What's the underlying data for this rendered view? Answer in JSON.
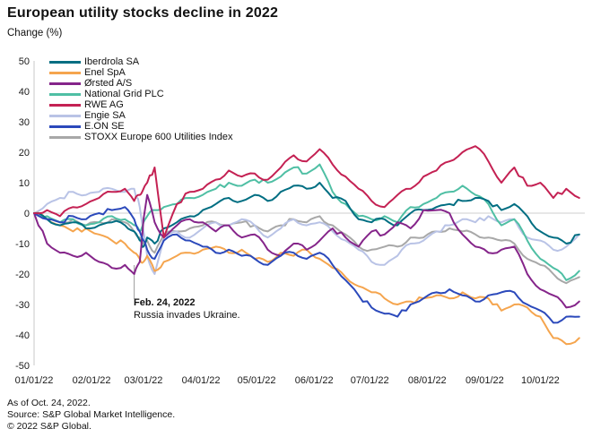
{
  "header": {
    "title": "European utility stocks decline in 2022",
    "subtitle": "Change (%)"
  },
  "annotation": {
    "line1": "Feb. 24, 2022",
    "line2": "Russia invades Ukraine."
  },
  "footer": {
    "line1": "As of Oct. 24, 2022.",
    "line2": "Source: S&P Global Market Intelligence.",
    "line3": "© 2022 S&P Global."
  },
  "chart_data": {
    "type": "line",
    "title": "European utility stocks decline in 2022",
    "xlabel": "",
    "ylabel": "Change (%)",
    "ylim": [
      -50,
      50
    ],
    "grid": "zero-line-only",
    "legend_position": "top-left",
    "y_ticks": [
      50,
      40,
      30,
      20,
      10,
      0,
      -10,
      -20,
      -30,
      -40,
      -50
    ],
    "x_tick_labels": [
      "01/01/22",
      "02/01/22",
      "03/01/22",
      "04/01/22",
      "05/01/22",
      "06/01/22",
      "07/01/22",
      "08/01/22",
      "09/01/22",
      "10/01/22"
    ],
    "x_tick_days": [
      0,
      31,
      59,
      90,
      120,
      151,
      181,
      212,
      243,
      273
    ],
    "x_range_days": [
      0,
      297
    ],
    "annotation_event": {
      "day": 54,
      "label": "Feb. 24, 2022",
      "text": "Russia invades Ukraine."
    },
    "x_days": [
      0,
      7,
      14,
      21,
      28,
      35,
      42,
      49,
      54,
      57,
      59,
      61,
      65,
      70,
      77,
      84,
      91,
      98,
      105,
      112,
      119,
      126,
      133,
      140,
      147,
      154,
      161,
      168,
      175,
      182,
      189,
      196,
      203,
      210,
      217,
      224,
      231,
      238,
      245,
      252,
      259,
      266,
      273,
      280,
      287,
      294
    ],
    "series": [
      {
        "name": "Iberdrola SA",
        "color": "#006e82",
        "values": [
          0,
          -2,
          -4,
          -3,
          -5,
          -4,
          -3,
          -4,
          -6,
          -9,
          -11,
          -8,
          -10,
          -5,
          -3,
          -1,
          1,
          3,
          5,
          4,
          6,
          4,
          7,
          9,
          8,
          10,
          5,
          4,
          -2,
          -3,
          -2,
          -4,
          0,
          1,
          2,
          3,
          4,
          5,
          4,
          1,
          3,
          -1,
          -6,
          -8,
          -10,
          -7
        ]
      },
      {
        "name": "Enel SpA",
        "color": "#f5a54e",
        "values": [
          0,
          -2,
          -4,
          -6,
          -5,
          -7,
          -9,
          -10,
          -13,
          -15,
          -16,
          -14,
          -19,
          -16,
          -14,
          -13,
          -12,
          -11,
          -13,
          -12,
          -15,
          -16,
          -13,
          -14,
          -12,
          -15,
          -18,
          -21,
          -24,
          -26,
          -28,
          -30,
          -29,
          -28,
          -27,
          -28,
          -26,
          -28,
          -28,
          -32,
          -30,
          -31,
          -34,
          -41,
          -43,
          -41
        ]
      },
      {
        "name": "Ørsted A/S",
        "color": "#85258a",
        "values": [
          0,
          -10,
          -13,
          -14,
          -13,
          -16,
          -18,
          -17,
          -20,
          -16,
          -2,
          6,
          -3,
          -8,
          -4,
          -2,
          -3,
          -6,
          -4,
          -8,
          -7,
          -12,
          -14,
          -10,
          -12,
          -9,
          -5,
          -8,
          -11,
          -6,
          -7,
          -3,
          -5,
          1,
          1,
          0,
          -7,
          -11,
          -13,
          -12,
          -11,
          -20,
          -25,
          -27,
          -31,
          -29
        ]
      },
      {
        "name": "National Grid PLC",
        "color": "#4fbfa4",
        "values": [
          0,
          -1,
          -3,
          -2,
          -4,
          -3,
          -1,
          -2,
          -4,
          -6,
          -3,
          -1,
          1,
          2,
          3,
          5,
          6,
          8,
          10,
          9,
          11,
          10,
          12,
          15,
          13,
          16,
          7,
          3,
          -1,
          -2,
          -1,
          -3,
          2,
          3,
          5,
          7,
          9,
          6,
          3,
          -4,
          -2,
          -9,
          -15,
          -18,
          -22,
          -19
        ]
      },
      {
        "name": "RWE AG",
        "color": "#c42153",
        "values": [
          0,
          1,
          -1,
          2,
          3,
          5,
          7,
          8,
          4,
          6,
          8,
          10,
          15,
          -8,
          3,
          7,
          8,
          11,
          14,
          12,
          13,
          11,
          15,
          19,
          17,
          21,
          16,
          12,
          8,
          4,
          2,
          6,
          8,
          12,
          14,
          17,
          20,
          22,
          17,
          10,
          15,
          9,
          10,
          5,
          8,
          5
        ]
      },
      {
        "name": "Engie SA",
        "color": "#b9c3e6",
        "values": [
          0,
          3,
          5,
          7,
          6,
          7,
          8,
          7,
          8,
          2,
          -6,
          -14,
          -20,
          -8,
          -6,
          -8,
          -5,
          -3,
          -4,
          -2,
          -4,
          -8,
          -5,
          -2,
          -4,
          -3,
          -6,
          -9,
          -12,
          -16,
          -17,
          -14,
          -10,
          -9,
          -6,
          -4,
          -2,
          -3,
          -1,
          -3,
          -2,
          -8,
          -9,
          -12,
          -11,
          -7
        ]
      },
      {
        "name": "E.ON SE",
        "color": "#2b49bb",
        "values": [
          0,
          -2,
          -3,
          -1,
          -2,
          0,
          1,
          2,
          -2,
          -6,
          -9,
          -12,
          -15,
          -9,
          -7,
          -9,
          -11,
          -13,
          -12,
          -14,
          -15,
          -17,
          -14,
          -13,
          -15,
          -13,
          -17,
          -22,
          -27,
          -31,
          -33,
          -34,
          -30,
          -28,
          -26,
          -25,
          -27,
          -29,
          -27,
          -26,
          -26,
          -30,
          -32,
          -36,
          -34,
          -34
        ]
      },
      {
        "name": "STOXX Europe 600 Utilities Index",
        "color": "#a8a8a8",
        "values": [
          0,
          -2,
          -3,
          -2,
          -4,
          -3,
          -2,
          -3,
          -6,
          -8,
          -10,
          -9,
          -13,
          -7,
          -6,
          -5,
          -4,
          -3,
          -4,
          -3,
          -4,
          -6,
          -4,
          -2,
          -3,
          -1,
          -4,
          -7,
          -11,
          -12,
          -11,
          -11,
          -8,
          -8,
          -6,
          -5,
          -6,
          -7,
          -8,
          -9,
          -10,
          -15,
          -17,
          -20,
          -23,
          -21
        ]
      }
    ]
  }
}
